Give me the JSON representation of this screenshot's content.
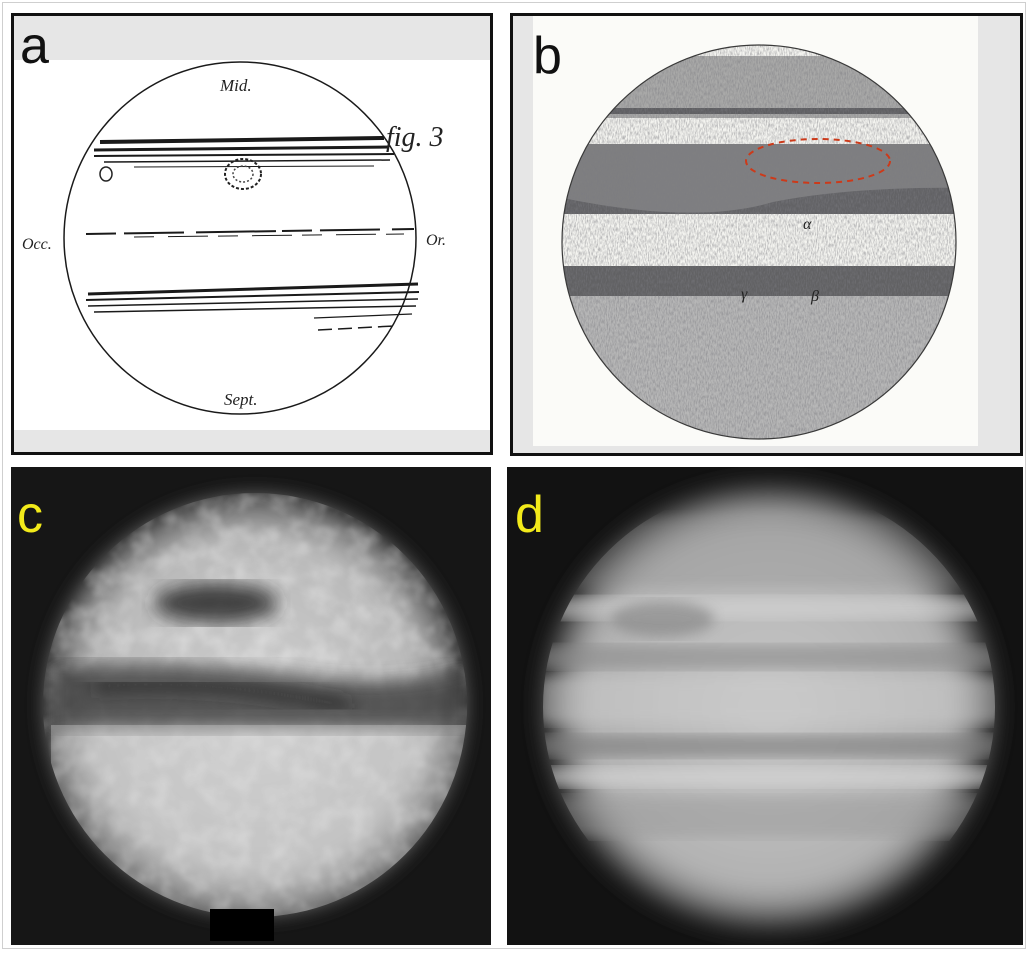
{
  "panels": {
    "a": {
      "letter": "a",
      "labels": {
        "top": "Mid.",
        "figure": "fig. 3",
        "left": "Occ.",
        "right": "Or.",
        "bottom": "Sept."
      }
    },
    "b": {
      "letter": "b",
      "labels": {
        "alpha": "α",
        "gamma": "γ",
        "beta": "β"
      },
      "highlight_color": "#cc3a1a"
    },
    "c": {
      "letter": "c"
    },
    "d": {
      "letter": "d"
    }
  },
  "colors": {
    "letter_dark": "#111111",
    "letter_yellow": "#f2ea1a"
  }
}
